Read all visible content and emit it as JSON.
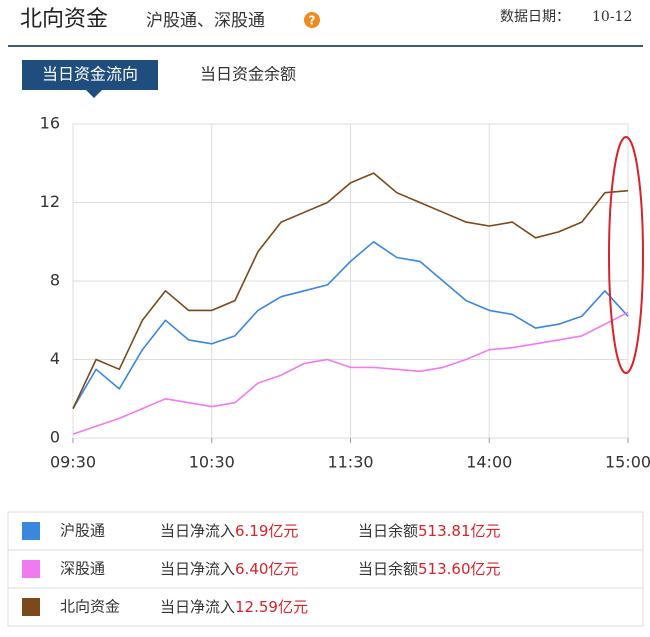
{
  "header": {
    "title": "北向资金",
    "subtitle": "沪股通、深股通",
    "date_label": "数据日期：",
    "date": "10-12"
  },
  "tabs": [
    "当日资金流向",
    "当日资金余额"
  ],
  "chart_data": {
    "type": "line",
    "categories": [
      "09:30",
      null,
      null,
      null,
      null,
      null,
      "10:30",
      null,
      null,
      null,
      null,
      null,
      "11:30",
      null,
      null,
      null,
      null,
      null,
      "14:00",
      null,
      null,
      null,
      null,
      null,
      "15:00"
    ],
    "series": [
      {
        "name": "沪股通",
        "color": "#3a87e0",
        "values": [
          1.5,
          3.5,
          2.5,
          4.5,
          6.0,
          5.0,
          4.8,
          5.2,
          6.5,
          7.2,
          7.5,
          7.8,
          9.0,
          10.0,
          9.2,
          9.0,
          8.0,
          7.0,
          6.5,
          6.3,
          5.6,
          5.8,
          6.2,
          7.5,
          6.2
        ]
      },
      {
        "name": "深股通",
        "color": "#f07af0",
        "values": [
          0.2,
          0.6,
          1.0,
          1.5,
          2.0,
          1.8,
          1.6,
          1.8,
          2.8,
          3.2,
          3.8,
          4.0,
          3.6,
          3.6,
          3.5,
          3.4,
          3.6,
          4.0,
          4.5,
          4.6,
          4.8,
          5.0,
          5.2,
          5.8,
          6.4
        ]
      },
      {
        "name": "北向资金",
        "color": "#7a4a1a",
        "values": [
          1.5,
          4.0,
          3.5,
          6.0,
          7.5,
          6.5,
          6.5,
          7.0,
          9.5,
          11.0,
          11.5,
          12.0,
          13.0,
          13.5,
          12.5,
          12.0,
          11.5,
          11.0,
          10.8,
          11.0,
          10.2,
          10.5,
          11.0,
          12.5,
          12.6
        ]
      }
    ],
    "ylim": [
      0,
      16
    ],
    "yticks": [
      0,
      4,
      8,
      12,
      16
    ],
    "grid": true
  },
  "summary_table": {
    "rows": [
      {
        "inflow_label": "当日净流入",
        "inflow": "6.19亿元",
        "balance_label": "当日余额",
        "balance": "513.81亿元"
      },
      {
        "inflow_label": "当日净流入",
        "inflow": "6.40亿元",
        "balance_label": "当日余额",
        "balance": "513.60亿元"
      },
      {
        "inflow_label": "当日净流入",
        "inflow": "12.59亿元"
      }
    ]
  }
}
